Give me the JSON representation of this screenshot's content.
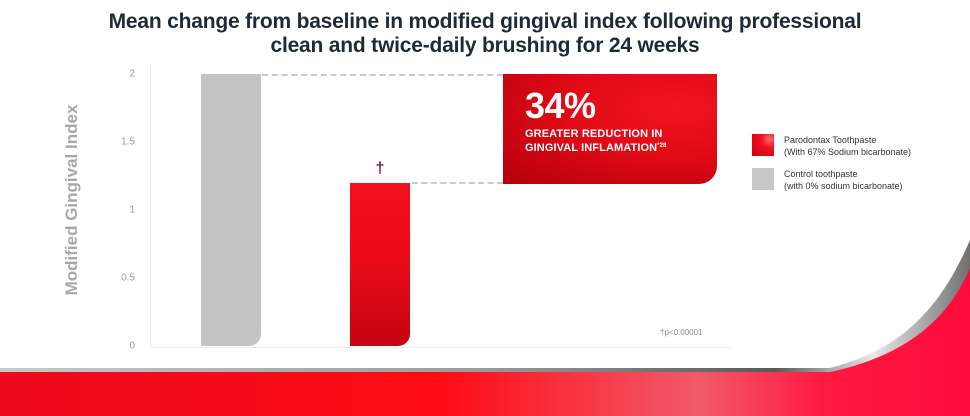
{
  "title": {
    "line1": "Mean change from baseline in modified gingival index following professional",
    "line2": "clean and twice-daily brushing for 24 weeks"
  },
  "callout": {
    "big": "34%",
    "line1": "GREATER REDUCTION IN",
    "line2": "GINGIVAL INFLAMATION",
    "superscript": "*28"
  },
  "legend": {
    "items": [
      {
        "line1": "Parodontax Toothpaste",
        "line2": "(With 67% Sodium bicarbonate)",
        "color": "#e8101e"
      },
      {
        "line1": "Control toothpaste",
        "line2": "(with 0% sodium bicarbonate)",
        "color": "#c4c4c4"
      }
    ]
  },
  "significance_marker": "†",
  "footnote": "†p<0.00001",
  "colors": {
    "brand_red": "#e8101e",
    "control_grey": "#c4c4c4",
    "title": "#1f2a38"
  },
  "chart_data": {
    "type": "bar",
    "title": "Mean change from baseline in modified gingival index following professional clean and twice-daily brushing for 24 weeks",
    "xlabel": "",
    "ylabel": "Modified Gingival Index",
    "ylim": [
      0,
      2
    ],
    "yticks": [
      "0",
      "0.5",
      "1",
      "1.5",
      "2"
    ],
    "categories": [
      "Control toothpaste (with 0% sodium bicarbonate)",
      "Parodontax Toothpaste (With 67% Sodium bicarbonate)"
    ],
    "values": [
      2.0,
      1.2
    ],
    "annotations": [
      "34% greater reduction in gingival inflamation*28",
      "† on Parodontax bar",
      "†p<0.00001"
    ],
    "grid": false,
    "legend_position": "right"
  }
}
